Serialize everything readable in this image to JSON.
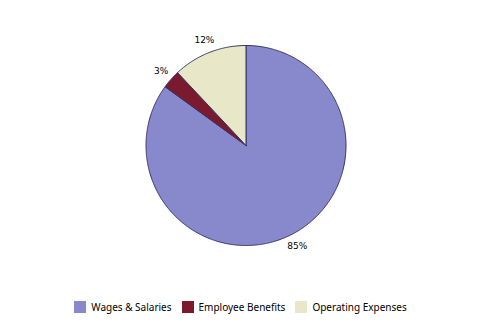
{
  "chart_data": {
    "type": "pie",
    "categories": [
      "Wages & Salaries",
      "Employee Benefits",
      "Operating Expenses"
    ],
    "values": [
      85,
      3,
      12
    ],
    "value_labels": [
      "85%",
      "3%",
      "12%"
    ],
    "colors": [
      "#8888cc",
      "#7b1a2e",
      "#e8e8c8"
    ],
    "data_labels": true,
    "legend": "bottom"
  }
}
